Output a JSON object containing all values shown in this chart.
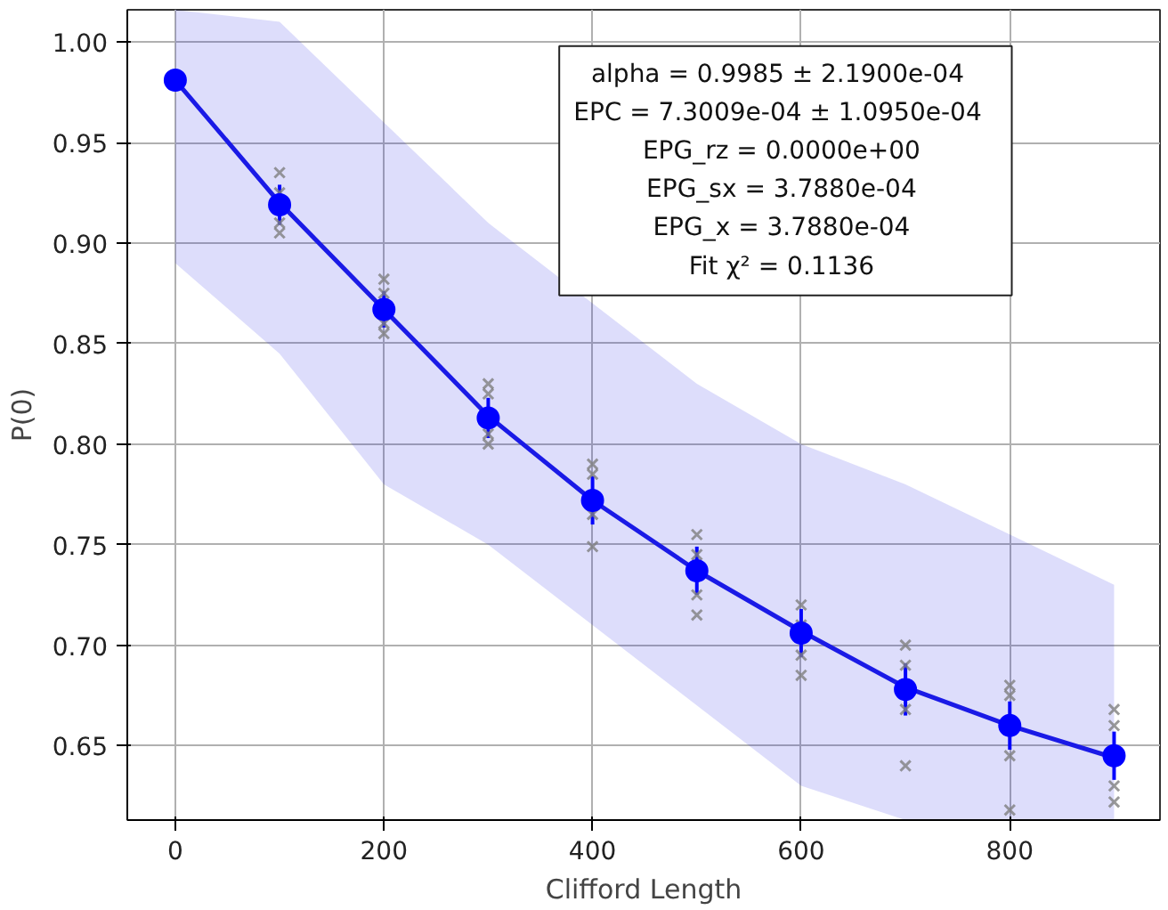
{
  "chart_data": {
    "type": "scatter",
    "xlabel": "Clifford Length",
    "ylabel": "P(0)",
    "xlim": [
      -46,
      944
    ],
    "ylim": [
      0.613,
      1.016
    ],
    "xticks": [
      0,
      200,
      400,
      600,
      800
    ],
    "yticks": [
      {
        "value": 0.65,
        "label": "0.65"
      },
      {
        "value": 0.7,
        "label": "0.70"
      },
      {
        "value": 0.75,
        "label": "0.75"
      },
      {
        "value": 0.8,
        "label": "0.80"
      },
      {
        "value": 0.85,
        "label": "0.85"
      },
      {
        "value": 0.9,
        "label": "0.90"
      },
      {
        "value": 0.95,
        "label": "0.95"
      },
      {
        "value": 1.0,
        "label": "1.00"
      }
    ],
    "grid": true,
    "annotations": [
      "alpha =  0.9985 ±  2.1900e-04",
      "EPC =  7.3009e-04 ±  1.0950e-04",
      "EPG_rz =  0.0000e+00",
      "EPG_sx =  3.7880e-04",
      "EPG_x =  3.7880e-04",
      "Fit χ² =  0.1136"
    ],
    "series": [
      {
        "type": "line",
        "color": "#1a1ae6",
        "marker": "none",
        "x": [
          0,
          100,
          200,
          300,
          400,
          500,
          600,
          700,
          800,
          900
        ],
        "values": [
          0.981,
          0.92,
          0.867,
          0.814,
          0.772,
          0.737,
          0.707,
          0.679,
          0.66,
          0.644
        ],
        "lower": [
          0.89,
          0.845,
          0.78,
          0.75,
          null,
          0.67,
          0.63,
          0.613,
          0.613,
          0.613
        ],
        "upper": [
          1.016,
          1.01,
          0.96,
          0.91,
          null,
          0.83,
          0.8,
          0.78,
          0.755,
          0.73
        ]
      },
      {
        "color": "#808080",
        "marker": "cross",
        "x": [
          100,
          100,
          100,
          100,
          200,
          200,
          200,
          200,
          300,
          300,
          300,
          300,
          400,
          400,
          400,
          400,
          500,
          500,
          500,
          500,
          600,
          600,
          600,
          600,
          700,
          700,
          700,
          700,
          800,
          800,
          800,
          800,
          900,
          900,
          900,
          900
        ],
        "values": [
          0.935,
          0.925,
          0.91,
          0.905,
          0.882,
          0.875,
          0.86,
          0.855,
          0.83,
          0.825,
          0.805,
          0.8,
          0.79,
          0.785,
          0.765,
          0.749,
          0.755,
          0.745,
          0.725,
          0.715,
          0.72,
          0.71,
          0.695,
          0.685,
          0.7,
          0.69,
          0.668,
          0.64,
          0.68,
          0.675,
          0.645,
          0.618,
          0.668,
          0.66,
          0.63,
          0.622
        ]
      },
      {
        "color": "#0000ff",
        "marker": "circle",
        "x": [
          0,
          100,
          200,
          300,
          400,
          500,
          600,
          700,
          800,
          900
        ],
        "values": [
          0.981,
          0.919,
          0.867,
          0.813,
          0.772,
          0.737,
          0.706,
          0.678,
          0.66,
          0.645
        ],
        "errors": [
          0.002,
          0.01,
          0.009,
          0.01,
          0.012,
          0.012,
          0.012,
          0.013,
          0.012,
          0.012
        ]
      }
    ]
  }
}
